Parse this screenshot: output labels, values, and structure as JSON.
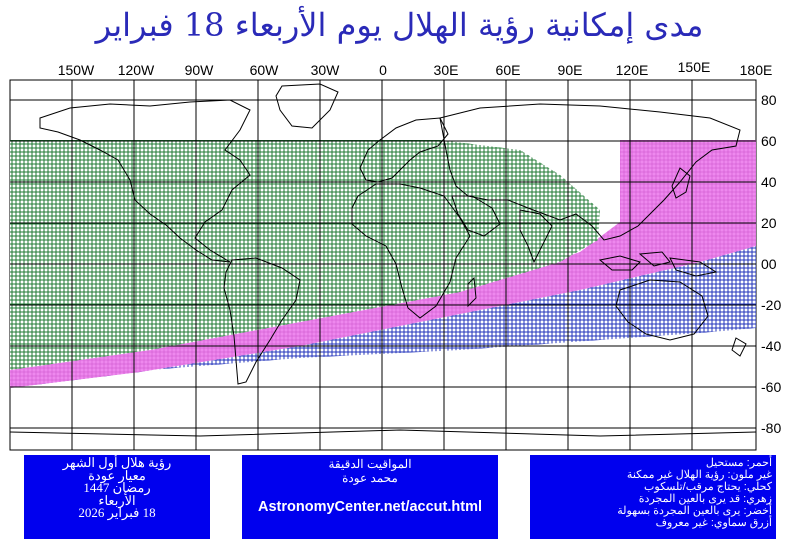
{
  "title": "مدى إمكانية رؤية الهلال يوم الأربعاء 18 فبراير",
  "map": {
    "longitude_labels": [
      "150W",
      "120W",
      "90W",
      "60W",
      "30W",
      "0",
      "30E",
      "60E",
      "90E",
      "120E",
      "150E",
      "180E"
    ],
    "latitude_labels": [
      "80",
      "60",
      "40",
      "20",
      "00",
      "-20",
      "-40",
      "-60",
      "-80"
    ],
    "zones": [
      {
        "name": "green",
        "color": "#1f8a3a",
        "meaning": "يرى بالعين المجردة بسهولة"
      },
      {
        "name": "magenta",
        "color": "#e060e0",
        "meaning": "قد يرى بالعين المجردة"
      },
      {
        "name": "blue",
        "color": "#2233cc",
        "meaning": "يحتاج مرقب/تلسكوب"
      }
    ]
  },
  "info_left": {
    "line1": "رؤية هلال أول الشهر",
    "line2": "معيار عودة",
    "line3": "رمضان 1447",
    "line4": "الأربعاء",
    "line5": "18 فبراير 2026"
  },
  "info_mid": {
    "heading": "المواقيت الدقيقة",
    "author": "محمد عودة",
    "site": "AstronomyCenter.net/accut.html"
  },
  "legend": {
    "items": [
      "أحمر: مستحيل",
      "غير ملون: رؤية الهلال غير ممكنة",
      "كحلي: يحتاج مرقب/تلسكوب",
      "زهري: قد يرى بالعين المجردة",
      "أخضر: يرى بالعين المجردة بسهولة",
      "أزرق سماوي: غير معروف"
    ]
  }
}
